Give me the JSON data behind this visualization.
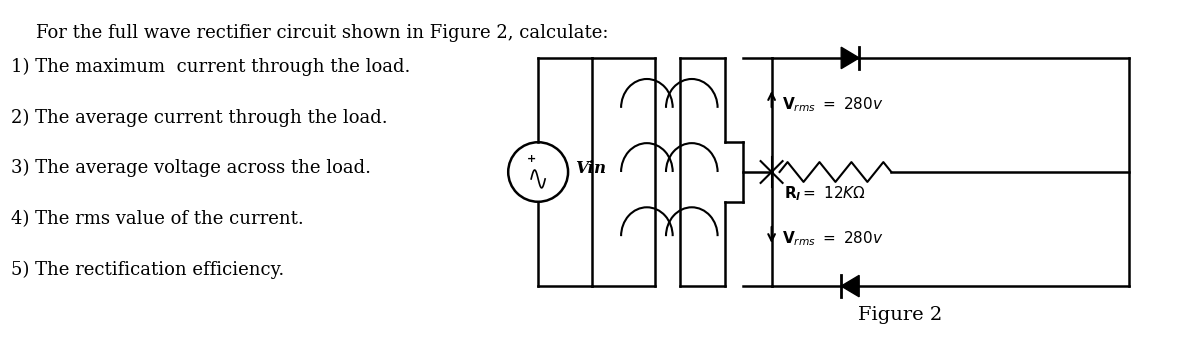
{
  "title": "For the full wave rectifier circuit shown in Figure 2, calculate:",
  "questions": [
    "1) The maximum  current through the load.",
    "2) The average current through the load.",
    "3) The average voltage across the load.",
    "4) The rms value of the current.",
    "5) The rectification efficiency."
  ],
  "figure_label": "Figure 2",
  "bg_color": "#ffffff",
  "text_color": "#000000",
  "title_fontsize": 13,
  "body_fontsize": 13,
  "figure_caption_fontsize": 14
}
